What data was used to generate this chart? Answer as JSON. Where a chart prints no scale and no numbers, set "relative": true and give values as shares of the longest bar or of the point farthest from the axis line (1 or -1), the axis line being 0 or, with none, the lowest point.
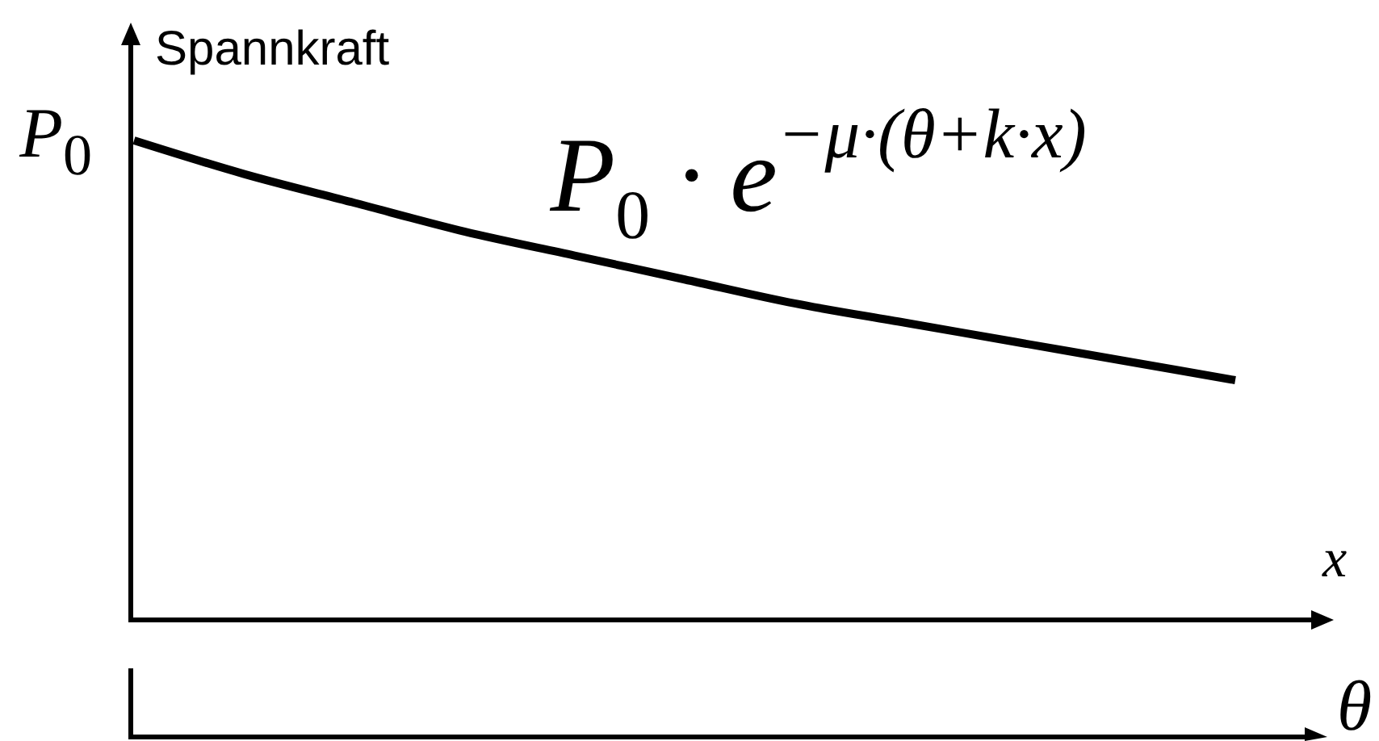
{
  "chart_data": {
    "type": "line",
    "relative": true,
    "ylabel": "Spannkraft",
    "xlabel": "x",
    "x2label": "θ",
    "categories": [
      null,
      null,
      null,
      null,
      null,
      null,
      null,
      null,
      null,
      null,
      null
    ],
    "series": [
      {
        "name": "P$_{0}$ · e$^{−μ·(θ+k·x)}$",
        "color": "#000000",
        "values": [
          1,
          0.93,
          0.87,
          0.81,
          0.76,
          0.71,
          0.66,
          0.62,
          0.58,
          0.54,
          0.5
        ]
      }
    ],
    "annotations": [
      "P$_{0}$"
    ]
  }
}
